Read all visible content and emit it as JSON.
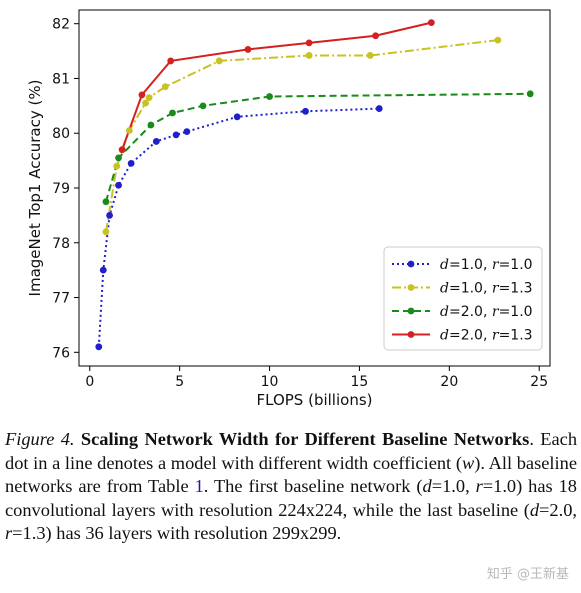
{
  "chart_data": {
    "type": "line",
    "xlabel": "FLOPS (billions)",
    "ylabel": "ImageNet Top1 Accuracy (%)",
    "xlim": [
      -0.6,
      25.6
    ],
    "ylim": [
      75.75,
      82.25
    ],
    "xticks": [
      0,
      5,
      10,
      15,
      20,
      25
    ],
    "yticks": [
      76,
      77,
      78,
      79,
      80,
      81,
      82
    ],
    "grid": false,
    "legend_position": "lower-right",
    "series": [
      {
        "name": "d=1.0, r=1.0",
        "legend": {
          "a": "d",
          "av": "=1.0, ",
          "b": "r",
          "bv": "=1.0"
        },
        "color": "#1f1fcc",
        "linestyle": "dotted",
        "x": [
          0.5,
          0.75,
          1.1,
          1.6,
          2.3,
          3.7,
          4.8,
          5.4,
          8.2,
          12.0,
          16.1
        ],
        "y": [
          76.1,
          77.5,
          78.5,
          79.05,
          79.45,
          79.85,
          79.97,
          80.03,
          80.3,
          80.4,
          80.45
        ]
      },
      {
        "name": "d=1.0, r=1.3",
        "legend": {
          "a": "d",
          "av": "=1.0, ",
          "b": "r",
          "bv": "=1.3"
        },
        "color": "#c8c223",
        "linestyle": "dashdot",
        "x": [
          0.9,
          1.5,
          2.2,
          3.1,
          3.3,
          4.2,
          7.2,
          12.2,
          15.6,
          22.7
        ],
        "y": [
          78.2,
          79.4,
          80.05,
          80.55,
          80.65,
          80.85,
          81.32,
          81.42,
          81.42,
          81.7
        ]
      },
      {
        "name": "d=2.0, r=1.0",
        "legend": {
          "a": "d",
          "av": "=2.0, ",
          "b": "r",
          "bv": "=1.0"
        },
        "color": "#1a8a1a",
        "linestyle": "dashed",
        "x": [
          0.9,
          1.6,
          3.4,
          4.6,
          6.3,
          10.0,
          24.5
        ],
        "y": [
          78.75,
          79.55,
          80.15,
          80.37,
          80.5,
          80.67,
          80.72
        ]
      },
      {
        "name": "d=2.0, r=1.3",
        "legend": {
          "a": "d",
          "av": "=2.0, ",
          "b": "r",
          "bv": "=1.3"
        },
        "color": "#d42020",
        "linestyle": "solid",
        "x": [
          1.8,
          2.9,
          4.5,
          8.8,
          12.2,
          15.9,
          19.0
        ],
        "y": [
          79.7,
          80.7,
          81.32,
          81.53,
          81.65,
          81.78,
          82.02
        ]
      }
    ]
  },
  "caption": {
    "figure_label": "Figure 4.",
    "title": "Scaling Network Width for Different Baseline Networks",
    "p1": ". Each dot in a line denotes a model with different width coefficient (",
    "w": "w",
    "p2": "). All baseline networks are from Table ",
    "table_ref": "1",
    "p3": ". The first baseline network (",
    "d1": "d",
    "v1": "=1.0, ",
    "r1": "r",
    "v2": "=1.0) has 18 convolutional layers with resolution 224x224, while the last baseline (",
    "d2": "d",
    "v3": "=2.0, ",
    "r2": "r",
    "v4": "=1.3) has 36 layers with resolution 299x299."
  },
  "watermark": "知乎 @王新基"
}
